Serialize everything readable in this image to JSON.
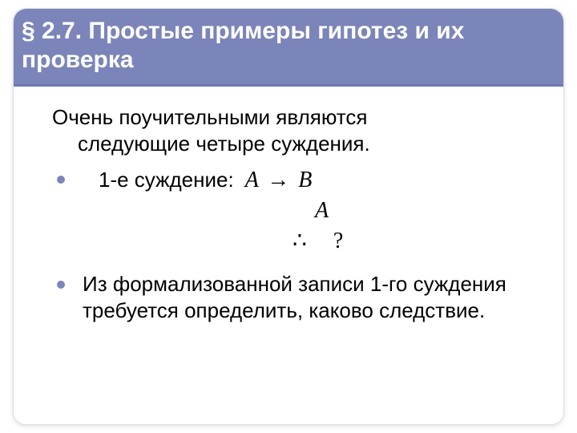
{
  "colors": {
    "title_band_bg": "#7b85b9",
    "title_text": "#ffffff",
    "body_text": "#000000",
    "bullet": "#7b85b9",
    "card_border": "#d9e0ec",
    "slide_bg": "#ffffff"
  },
  "typography": {
    "title_fontsize_pt": 22,
    "body_fontsize_pt": 20,
    "formula_fontsize_pt": 21,
    "font_family_body": "Arial",
    "font_family_formula": "Times New Roman",
    "title_weight": "bold"
  },
  "title": "§ 2.7.  Простые примеры гипотез и их проверка",
  "intro_line1": "Очень поучительными являются",
  "intro_line2": "следующие четыре суждения.",
  "bullet1": {
    "label": "1-е суждение:",
    "formula": {
      "line1_A": "A",
      "line1_arrow": "→",
      "line1_B": "B",
      "line2": "A",
      "line3_therefore": "∴",
      "line3_q": "?"
    }
  },
  "bullet2": "Из формализованной записи    1-го суждения требуется определить, каково следствие."
}
